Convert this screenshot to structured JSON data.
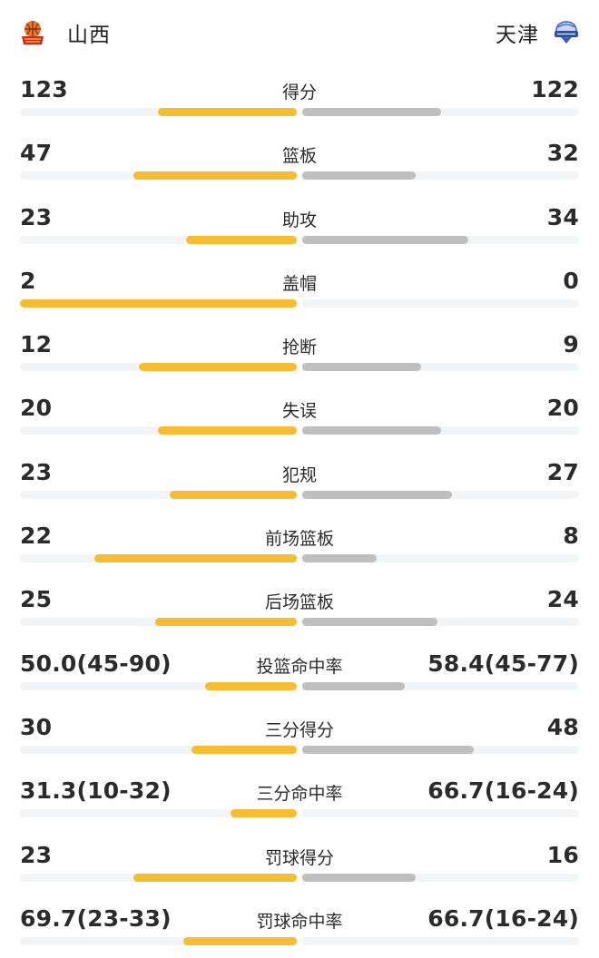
{
  "header": {
    "home": {
      "name": "山西",
      "logo_icon": "shanxi-loongs-logo-icon"
    },
    "away": {
      "name": "天津",
      "logo_icon": "tianjin-pioneers-logo-icon"
    }
  },
  "colors": {
    "home_bar": "#f5bd31",
    "away_bar": "#bfbfbf",
    "track": "#f3f4f6"
  },
  "stats": [
    {
      "label": "得分",
      "home": "123",
      "away": "122",
      "home_fill": 0.5,
      "away_fill": 0.5
    },
    {
      "label": "篮板",
      "home": "47",
      "away": "32",
      "home_fill": 0.59,
      "away_fill": 0.41
    },
    {
      "label": "助攻",
      "home": "23",
      "away": "34",
      "home_fill": 0.4,
      "away_fill": 0.6
    },
    {
      "label": "盖帽",
      "home": "2",
      "away": "0",
      "home_fill": 1.0,
      "away_fill": 0.0
    },
    {
      "label": "抢断",
      "home": "12",
      "away": "9",
      "home_fill": 0.57,
      "away_fill": 0.43
    },
    {
      "label": "失误",
      "home": "20",
      "away": "20",
      "home_fill": 0.5,
      "away_fill": 0.5
    },
    {
      "label": "犯规",
      "home": "23",
      "away": "27",
      "home_fill": 0.46,
      "away_fill": 0.54
    },
    {
      "label": "前场篮板",
      "home": "22",
      "away": "8",
      "home_fill": 0.73,
      "away_fill": 0.27
    },
    {
      "label": "后场篮板",
      "home": "25",
      "away": "24",
      "home_fill": 0.51,
      "away_fill": 0.49
    },
    {
      "label": "投篮命中率",
      "home": "50.0(45-90)",
      "away": "58.4(45-77)",
      "home_fill": 0.33,
      "away_fill": 0.37
    },
    {
      "label": "三分得分",
      "home": "30",
      "away": "48",
      "home_fill": 0.38,
      "away_fill": 0.62
    },
    {
      "label": "三分命中率",
      "home": "31.3(10-32)",
      "away": "66.7(16-24)",
      "home_fill": 0.24,
      "away_fill": 0.0
    },
    {
      "label": "罚球得分",
      "home": "23",
      "away": "16",
      "home_fill": 0.59,
      "away_fill": 0.41
    },
    {
      "label": "罚球命中率",
      "home": "69.7(23-33)",
      "away": "66.7(16-24)",
      "home_fill": 0.41,
      "away_fill": 0.0
    }
  ]
}
